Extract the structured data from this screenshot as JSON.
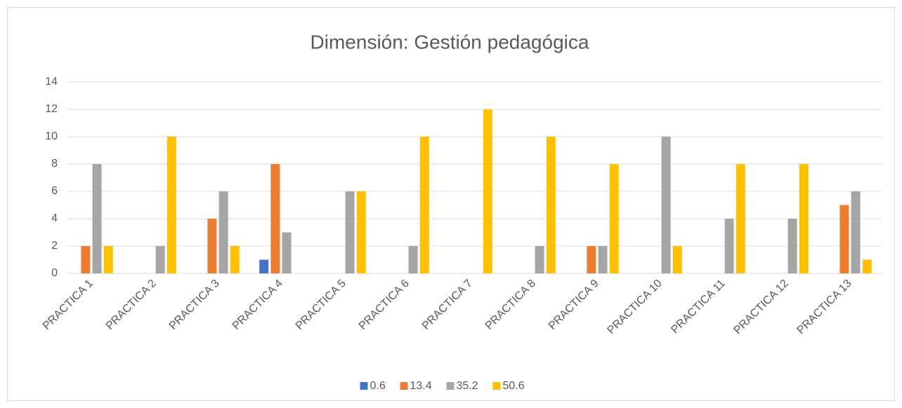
{
  "chart_data": {
    "type": "bar",
    "title": "Dimensión: Gestión pedagógica",
    "categories": [
      "PRACTICA 1",
      "PRACTICA 2",
      "PRACTICA 3",
      "PRACTICA 4",
      "PRACTICA 5",
      "PRACTICA 6",
      "PRACTICA 7",
      "PRACTICA 8",
      "PRACTICA 9",
      "PRACTICA 10",
      "PRACTICA 11",
      "PRACTICA 12",
      "PRACTICA 13"
    ],
    "series": [
      {
        "name": "0.6",
        "color": "#4472c4",
        "values": [
          0,
          0,
          0,
          1,
          0,
          0,
          0,
          0,
          0,
          0,
          0,
          0,
          0
        ]
      },
      {
        "name": "13.4",
        "color": "#ed7d31",
        "values": [
          2,
          0,
          4,
          8,
          0,
          0,
          0,
          0,
          2,
          0,
          0,
          0,
          5
        ]
      },
      {
        "name": "35.2",
        "color": "#a5a5a5",
        "values": [
          8,
          2,
          6,
          3,
          6,
          2,
          0,
          2,
          2,
          10,
          4,
          4,
          6
        ]
      },
      {
        "name": "50.6",
        "color": "#ffc000",
        "values": [
          2,
          10,
          2,
          0,
          6,
          10,
          12,
          10,
          8,
          2,
          8,
          8,
          1
        ]
      }
    ],
    "ylim": [
      0,
      14
    ],
    "yticks": [
      0,
      2,
      4,
      6,
      8,
      10,
      12,
      14
    ],
    "grid": true,
    "legend": "bottom"
  }
}
